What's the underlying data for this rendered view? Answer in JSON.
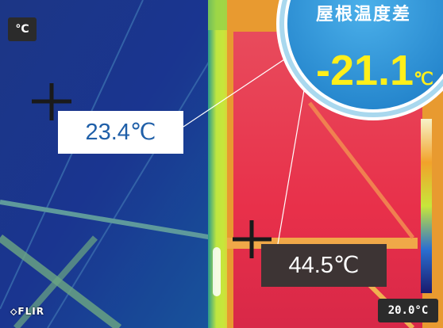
{
  "camera": {
    "unit_label": "°C",
    "brand": "⬦FLIR",
    "scale_min": "20.0°C"
  },
  "callouts": {
    "cold_temp": "23.4℃",
    "hot_temp": "44.5℃"
  },
  "badge": {
    "title": "屋根温度差",
    "value": "-21.1",
    "unit": "℃"
  },
  "colors": {
    "cold_bg": "#1a3d8f",
    "hot_bg": "#e8344e",
    "badge_fill": "#2d8fd6",
    "badge_ring": "#a9d8ee",
    "value_color": "#ffef1a"
  }
}
